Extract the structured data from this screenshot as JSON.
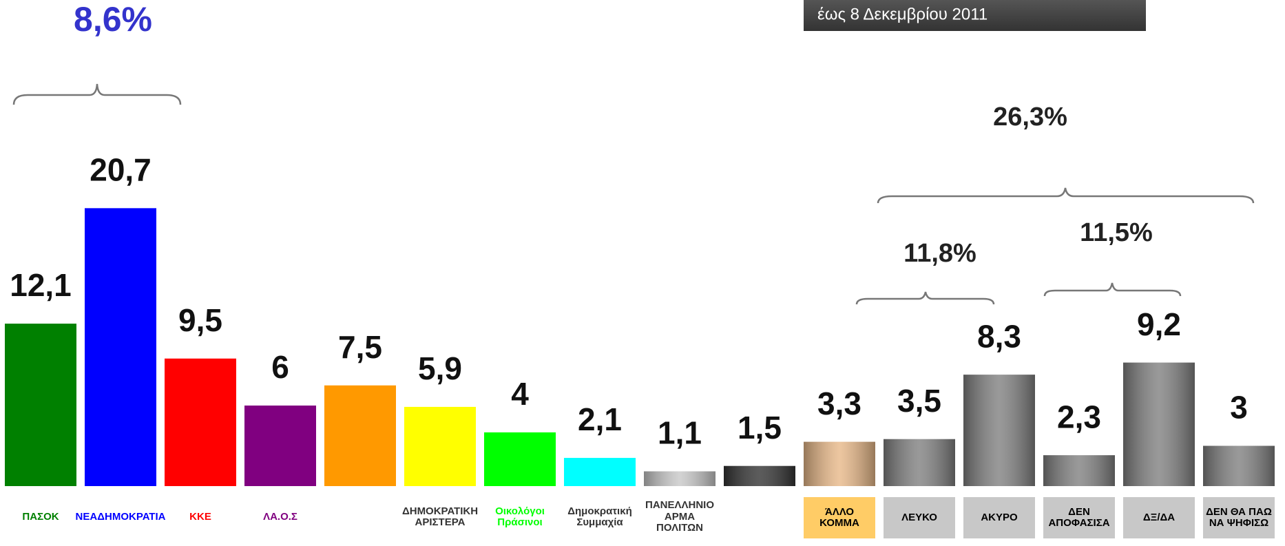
{
  "chart_data": {
    "type": "bar",
    "header": "έως 8 Δεκεμβρίου 2011",
    "categories": [
      "ΠΑΣΟΚ",
      "ΝΕΑΔΗΜΟΚΡΑΤΙΑ",
      "ΚΚΕ",
      "ΛΑ.Ο.Σ",
      null,
      "ΔΗΜΟΚΡΑΤΙΚΗ\nΑΡΙΣΤΕΡΑ",
      "Οικολόγοι\nΠράσινοι",
      "Δημοκρατική\nΣυμμαχία",
      "ΠΑΝΕΛΛΗΝΙΟ\nΑΡΜΑ ΠΟΛΙΤΩΝ",
      null,
      "ΆΛΛΟ\nΚΟΜΜΑ",
      "ΛΕΥΚΟ",
      "ΑΚΥΡΟ",
      "ΔΕΝ\nΑΠΟΦΑΣΙΣΑ",
      "ΔΞ/ΔΑ",
      "ΔΕΝ ΘΑ ΠΑΩ\nΝΑ ΨΗΦΙΣΩ"
    ],
    "values": [
      12.1,
      20.7,
      9.5,
      6,
      7.5,
      5.9,
      4,
      2.1,
      1.1,
      1.5,
      3.3,
      3.5,
      8.3,
      2.3,
      9.2,
      3
    ],
    "value_labels": [
      "12,1",
      "20,7",
      "9,5",
      "6",
      "7,5",
      "5,9",
      "4",
      "2,1",
      "1,1",
      "1,5",
      "3,3",
      "3,5",
      "8,3",
      "2,3",
      "9,2",
      "3"
    ],
    "colors": [
      "#008000",
      "#0000ff",
      "#ff0000",
      "#800080",
      "#ff9900",
      "#ffff00",
      "#00ff00",
      "#00ffff",
      "#c8c8c8",
      "#333333",
      "#e8b888",
      "#808080",
      "#808080",
      "#808080",
      "#808080",
      "#808080"
    ],
    "annotations": [
      "8,6%",
      "26,3%",
      "11,8%",
      "11,5%"
    ]
  }
}
